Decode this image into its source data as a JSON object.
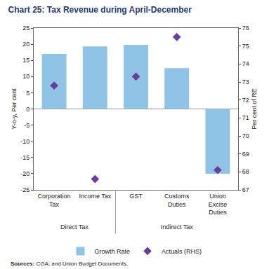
{
  "chart_data": {
    "type": "bar",
    "title": "Chart 25: Tax Revenue during April-December",
    "categories": [
      "Corporation Tax",
      "Income Tax",
      "GST",
      "Customs Duties",
      "Union Excise Duties"
    ],
    "category_groups": [
      "Direct Tax",
      "Direct Tax",
      "Indirect Tax",
      "Indirect Tax",
      "Indirect Tax"
    ],
    "y_label": "Y-o-y, Per cent",
    "y2_label": "Per cent of RE",
    "series": [
      {
        "name": "Growth Rate",
        "type": "bar",
        "color": "#8fc4e6",
        "values": [
          17.0,
          19.3,
          19.8,
          12.6,
          -20.0
        ]
      },
      {
        "name": "Actuals (RHS)",
        "type": "scatter",
        "marker": "diamond",
        "color": "#6a3d9a",
        "axis": "y2",
        "values": [
          72.8,
          67.6,
          73.3,
          75.5,
          68.1
        ]
      }
    ],
    "ylim": [
      -25,
      25
    ],
    "yticks": [
      -25,
      -20,
      -15,
      -10,
      -5,
      0,
      5,
      10,
      15,
      20,
      25
    ],
    "y2lim": [
      67,
      76
    ],
    "y2ticks": [
      67,
      68,
      69,
      70,
      71,
      72,
      73,
      74,
      75,
      76
    ],
    "grid": false,
    "legend": "bottom",
    "source": "Sources: CGA; and Union Budget Documents."
  }
}
